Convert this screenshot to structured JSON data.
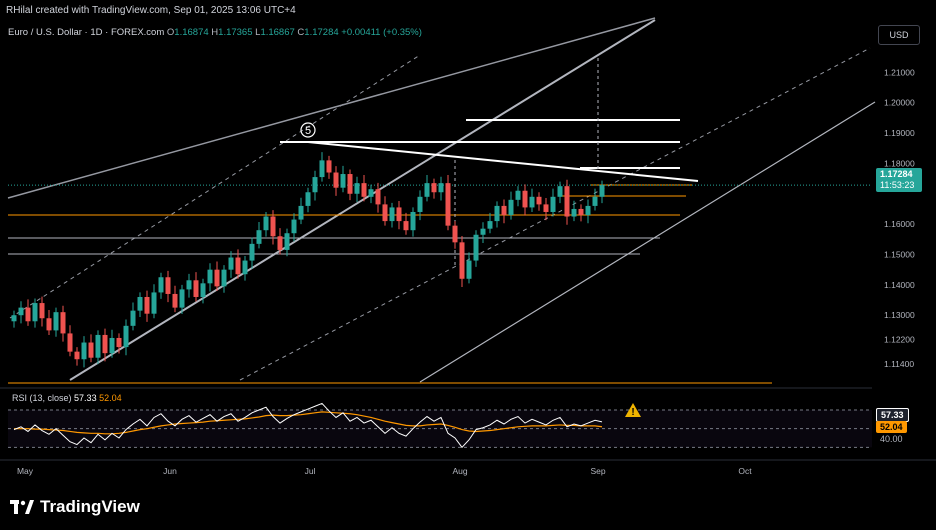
{
  "header": {
    "credit": "RHilal created with TradingView.com, Sep 01, 2025 13:06 UTC+4"
  },
  "symbol": {
    "name": "Euro / U.S. Dollar · 1D · FOREX.com",
    "o_label": "O",
    "o": "1.16874",
    "h_label": "H",
    "h": "1.17365",
    "l_label": "L",
    "l": "1.16867",
    "c_label": "C",
    "c": "1.17284",
    "change": "+0.00411 (+0.35%)"
  },
  "currency": "USD",
  "price_badge": {
    "price": "1.17284",
    "countdown": "11:53:23"
  },
  "rsi": {
    "legend": "RSI (13, close)",
    "value": "57.33",
    "ma": "52.04",
    "level": "40.00"
  },
  "wave_label": "5",
  "logo": "TradingView",
  "icons": {
    "warning": "warning-triangle-icon",
    "logo": "tradingview-logo-icon"
  },
  "colors": {
    "up": "#26a69a",
    "down": "#ef5350",
    "rsi": "#ffffff",
    "rsi_ma": "#ff9800",
    "level": "#ff9800"
  },
  "chart_data": {
    "type": "candlestick",
    "x_ticks": [
      "May",
      "Jun",
      "Jul",
      "Aug",
      "Sep",
      "Oct"
    ],
    "y_ticks": [
      "1.21000",
      "1.20000",
      "1.19000",
      "1.18000",
      "1.17284",
      "1.16000",
      "1.15000",
      "1.14000",
      "1.13000",
      "1.12200",
      "1.11400"
    ],
    "ylim": [
      1.108,
      1.219
    ],
    "last_close": 1.17284,
    "closes": [
      1.13,
      1.1325,
      1.128,
      1.134,
      1.129,
      1.125,
      1.131,
      1.124,
      1.118,
      1.1155,
      1.121,
      1.116,
      1.1235,
      1.1175,
      1.1225,
      1.1195,
      1.1265,
      1.1315,
      1.136,
      1.1305,
      1.1375,
      1.1425,
      1.137,
      1.1325,
      1.1385,
      1.1415,
      1.136,
      1.1405,
      1.145,
      1.1395,
      1.145,
      1.149,
      1.1435,
      1.148,
      1.1535,
      1.158,
      1.1625,
      1.156,
      1.1515,
      1.157,
      1.1615,
      1.166,
      1.1705,
      1.1755,
      1.181,
      1.177,
      1.172,
      1.1765,
      1.17,
      1.1735,
      1.169,
      1.1715,
      1.1665,
      1.161,
      1.1655,
      1.161,
      1.158,
      1.164,
      1.169,
      1.1735,
      1.1705,
      1.1735,
      1.1595,
      1.154,
      1.142,
      1.148,
      1.1565,
      1.1585,
      1.161,
      1.166,
      1.163,
      1.168,
      1.171,
      1.1655,
      1.169,
      1.1665,
      1.164,
      1.169,
      1.1725,
      1.1625,
      1.165,
      1.163,
      1.166,
      1.169,
      1.17284
    ],
    "levels": [
      1.163,
      1.163,
      1.161,
      1.154,
      1.151
    ],
    "rsi_values": [
      49,
      52,
      47,
      54,
      48,
      44,
      50,
      43,
      36,
      33,
      40,
      35,
      44,
      38,
      45,
      40,
      49,
      55,
      60,
      53,
      62,
      66,
      58,
      53,
      60,
      64,
      57,
      61,
      65,
      58,
      63,
      66,
      58,
      62,
      67,
      70,
      73,
      63,
      56,
      61,
      65,
      68,
      71,
      74,
      77,
      69,
      62,
      67,
      58,
      62,
      56,
      59,
      52,
      45,
      51,
      45,
      42,
      50,
      57,
      63,
      58,
      62,
      45,
      40,
      30,
      38,
      49,
      51,
      54,
      59,
      55,
      60,
      63,
      56,
      60,
      57,
      54,
      59,
      62,
      52,
      55,
      53,
      56,
      59,
      57.33
    ],
    "rsi_ma": [
      50,
      50,
      50,
      49.5,
      49.5,
      49,
      48.5,
      48,
      47,
      46,
      45.5,
      45,
      45,
      44.5,
      44.5,
      45,
      46,
      47.5,
      49,
      50,
      51.5,
      53,
      54,
      55,
      55.5,
      56,
      56.5,
      57,
      58,
      58.5,
      59,
      59.5,
      60,
      60.5,
      61.5,
      62.5,
      64,
      64.5,
      64,
      64,
      64.5,
      65,
      66,
      67,
      68,
      67.5,
      67,
      66.5,
      66,
      65,
      63.5,
      62,
      60,
      58,
      56.5,
      55,
      53.5,
      53,
      53,
      54,
      54.5,
      55,
      53.5,
      51.5,
      49,
      47.5,
      47,
      47.5,
      48,
      49,
      50,
      51,
      52,
      52.5,
      53,
      53,
      53,
      53.5,
      54,
      53.5,
      53.5,
      53,
      53,
      53,
      52.04
    ]
  }
}
